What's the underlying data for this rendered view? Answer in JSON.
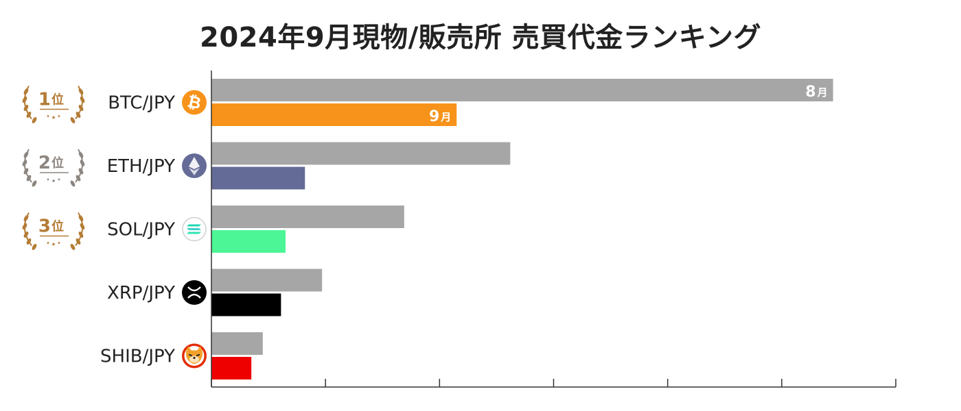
{
  "chart_data": {
    "type": "bar",
    "orientation": "horizontal",
    "title": "2024年9月現物/販売所 売買代金ランキング",
    "categories": [
      "BTC/JPY",
      "ETH/JPY",
      "SOL/JPY",
      "XRP/JPY",
      "SHIB/JPY"
    ],
    "series": [
      {
        "name": "8月",
        "color": "#a6a6a6",
        "values": [
          5.45,
          2.62,
          1.69,
          0.97,
          0.45
        ]
      },
      {
        "name": "9月",
        "values": [
          2.15,
          0.82,
          0.65,
          0.61,
          0.35
        ],
        "colors": [
          "#f7931a",
          "#646b96",
          "#4cf596",
          "#000000",
          "#ee0000"
        ]
      }
    ],
    "xlim": [
      0,
      6
    ],
    "x_ticks": [
      0,
      1,
      2,
      3,
      4,
      5,
      6
    ],
    "x_tick_labels_shown": false,
    "ranks": [
      {
        "category": "BTC/JPY",
        "num": "1",
        "unit": "位",
        "color": "#b47c35"
      },
      {
        "category": "ETH/JPY",
        "num": "2",
        "unit": "位",
        "color": "#8d8680"
      },
      {
        "category": "SOL/JPY",
        "num": "3",
        "unit": "位",
        "color": "#b47c35"
      }
    ],
    "icons": [
      "bitcoin-icon",
      "ethereum-icon",
      "solana-icon",
      "xrp-icon",
      "shiba-inu-icon"
    ],
    "legend": "inline labels on first category bars"
  }
}
